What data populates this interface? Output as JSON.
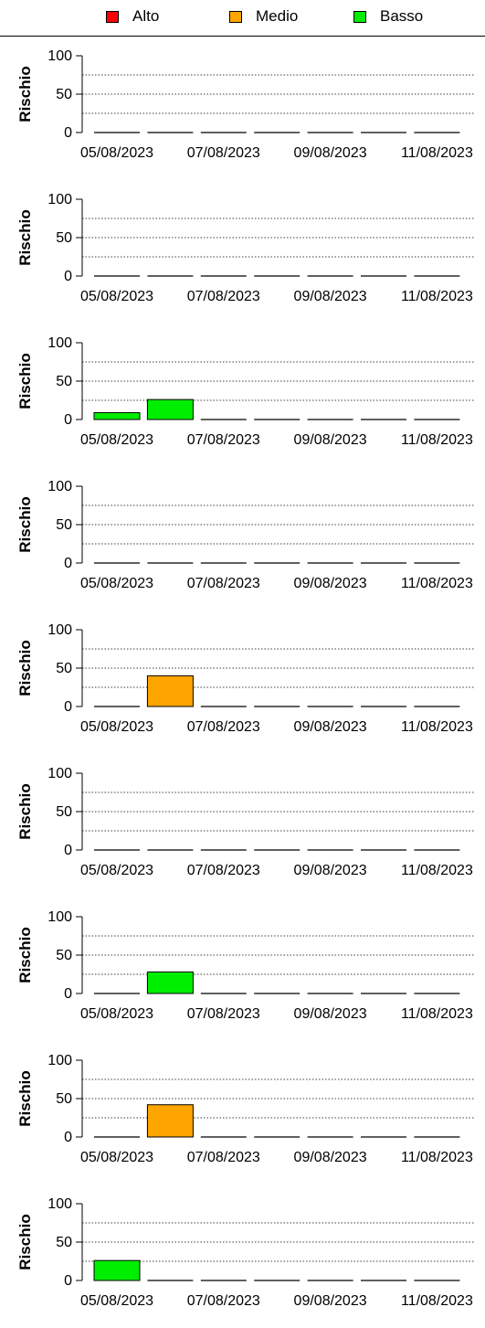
{
  "legend": {
    "items": [
      {
        "label": "Alto",
        "color": "#ff0000"
      },
      {
        "label": "Medio",
        "color": "#ffa500"
      },
      {
        "label": "Basso",
        "color": "#00ee00"
      }
    ]
  },
  "chart_data": [
    {
      "type": "bar",
      "ylabel": "Rischio",
      "ylim": [
        0,
        100
      ],
      "yticks": [
        "0",
        "50",
        "100"
      ],
      "grid_lines": [
        25,
        50,
        75
      ],
      "xtick_labels": [
        "05/08/2023",
        "07/08/2023",
        "09/08/2023",
        "11/08/2023"
      ],
      "categories": [
        "05/08/2023",
        "06/08/2023",
        "07/08/2023",
        "08/08/2023",
        "09/08/2023",
        "10/08/2023",
        "11/08/2023"
      ],
      "values": [
        0,
        0,
        0,
        0,
        0,
        0,
        0
      ],
      "levels": [
        "Basso",
        "Basso",
        "Basso",
        "Basso",
        "Basso",
        "Basso",
        "Basso"
      ]
    },
    {
      "type": "bar",
      "ylabel": "Rischio",
      "ylim": [
        0,
        100
      ],
      "yticks": [
        "0",
        "50",
        "100"
      ],
      "grid_lines": [
        25,
        50,
        75
      ],
      "xtick_labels": [
        "05/08/2023",
        "07/08/2023",
        "09/08/2023",
        "11/08/2023"
      ],
      "categories": [
        "05/08/2023",
        "06/08/2023",
        "07/08/2023",
        "08/08/2023",
        "09/08/2023",
        "10/08/2023",
        "11/08/2023"
      ],
      "values": [
        0,
        0,
        0,
        0,
        0,
        0,
        0
      ],
      "levels": [
        "Basso",
        "Basso",
        "Basso",
        "Basso",
        "Basso",
        "Basso",
        "Basso"
      ]
    },
    {
      "type": "bar",
      "ylabel": "Rischio",
      "ylim": [
        0,
        100
      ],
      "yticks": [
        "0",
        "50",
        "100"
      ],
      "grid_lines": [
        25,
        50,
        75
      ],
      "xtick_labels": [
        "05/08/2023",
        "07/08/2023",
        "09/08/2023",
        "11/08/2023"
      ],
      "categories": [
        "05/08/2023",
        "06/08/2023",
        "07/08/2023",
        "08/08/2023",
        "09/08/2023",
        "10/08/2023",
        "11/08/2023"
      ],
      "values": [
        9,
        26,
        0,
        0,
        0,
        0,
        0
      ],
      "levels": [
        "Basso",
        "Basso",
        "Basso",
        "Basso",
        "Basso",
        "Basso",
        "Basso"
      ]
    },
    {
      "type": "bar",
      "ylabel": "Rischio",
      "ylim": [
        0,
        100
      ],
      "yticks": [
        "0",
        "50",
        "100"
      ],
      "grid_lines": [
        25,
        50,
        75
      ],
      "xtick_labels": [
        "05/08/2023",
        "07/08/2023",
        "09/08/2023",
        "11/08/2023"
      ],
      "categories": [
        "05/08/2023",
        "06/08/2023",
        "07/08/2023",
        "08/08/2023",
        "09/08/2023",
        "10/08/2023",
        "11/08/2023"
      ],
      "values": [
        0,
        0,
        0,
        0,
        0,
        0,
        0
      ],
      "levels": [
        "Basso",
        "Basso",
        "Basso",
        "Basso",
        "Basso",
        "Basso",
        "Basso"
      ]
    },
    {
      "type": "bar",
      "ylabel": "Rischio",
      "ylim": [
        0,
        100
      ],
      "yticks": [
        "0",
        "50",
        "100"
      ],
      "grid_lines": [
        25,
        50,
        75
      ],
      "xtick_labels": [
        "05/08/2023",
        "07/08/2023",
        "09/08/2023",
        "11/08/2023"
      ],
      "categories": [
        "05/08/2023",
        "06/08/2023",
        "07/08/2023",
        "08/08/2023",
        "09/08/2023",
        "10/08/2023",
        "11/08/2023"
      ],
      "values": [
        0,
        40,
        0,
        0,
        0,
        0,
        0
      ],
      "levels": [
        "Basso",
        "Medio",
        "Basso",
        "Basso",
        "Basso",
        "Basso",
        "Basso"
      ]
    },
    {
      "type": "bar",
      "ylabel": "Rischio",
      "ylim": [
        0,
        100
      ],
      "yticks": [
        "0",
        "50",
        "100"
      ],
      "grid_lines": [
        25,
        50,
        75
      ],
      "xtick_labels": [
        "05/08/2023",
        "07/08/2023",
        "09/08/2023",
        "11/08/2023"
      ],
      "categories": [
        "05/08/2023",
        "06/08/2023",
        "07/08/2023",
        "08/08/2023",
        "09/08/2023",
        "10/08/2023",
        "11/08/2023"
      ],
      "values": [
        0,
        0,
        0,
        0,
        0,
        0,
        0
      ],
      "levels": [
        "Basso",
        "Basso",
        "Basso",
        "Basso",
        "Basso",
        "Basso",
        "Basso"
      ]
    },
    {
      "type": "bar",
      "ylabel": "Rischio",
      "ylim": [
        0,
        100
      ],
      "yticks": [
        "0",
        "50",
        "100"
      ],
      "grid_lines": [
        25,
        50,
        75
      ],
      "xtick_labels": [
        "05/08/2023",
        "07/08/2023",
        "09/08/2023",
        "11/08/2023"
      ],
      "categories": [
        "05/08/2023",
        "06/08/2023",
        "07/08/2023",
        "08/08/2023",
        "09/08/2023",
        "10/08/2023",
        "11/08/2023"
      ],
      "values": [
        0,
        28,
        0,
        0,
        0,
        0,
        0
      ],
      "levels": [
        "Basso",
        "Basso",
        "Basso",
        "Basso",
        "Basso",
        "Basso",
        "Basso"
      ]
    },
    {
      "type": "bar",
      "ylabel": "Rischio",
      "ylim": [
        0,
        100
      ],
      "yticks": [
        "0",
        "50",
        "100"
      ],
      "grid_lines": [
        25,
        50,
        75
      ],
      "xtick_labels": [
        "05/08/2023",
        "07/08/2023",
        "09/08/2023",
        "11/08/2023"
      ],
      "categories": [
        "05/08/2023",
        "06/08/2023",
        "07/08/2023",
        "08/08/2023",
        "09/08/2023",
        "10/08/2023",
        "11/08/2023"
      ],
      "values": [
        0,
        42,
        0,
        0,
        0,
        0,
        0
      ],
      "levels": [
        "Basso",
        "Medio",
        "Basso",
        "Basso",
        "Basso",
        "Basso",
        "Basso"
      ]
    },
    {
      "type": "bar",
      "ylabel": "Rischio",
      "ylim": [
        0,
        100
      ],
      "yticks": [
        "0",
        "50",
        "100"
      ],
      "grid_lines": [
        25,
        50,
        75
      ],
      "xtick_labels": [
        "05/08/2023",
        "07/08/2023",
        "09/08/2023",
        "11/08/2023"
      ],
      "categories": [
        "05/08/2023",
        "06/08/2023",
        "07/08/2023",
        "08/08/2023",
        "09/08/2023",
        "10/08/2023",
        "11/08/2023"
      ],
      "values": [
        26,
        0,
        0,
        0,
        0,
        0,
        0
      ],
      "levels": [
        "Basso",
        "Basso",
        "Basso",
        "Basso",
        "Basso",
        "Basso",
        "Basso"
      ]
    }
  ]
}
